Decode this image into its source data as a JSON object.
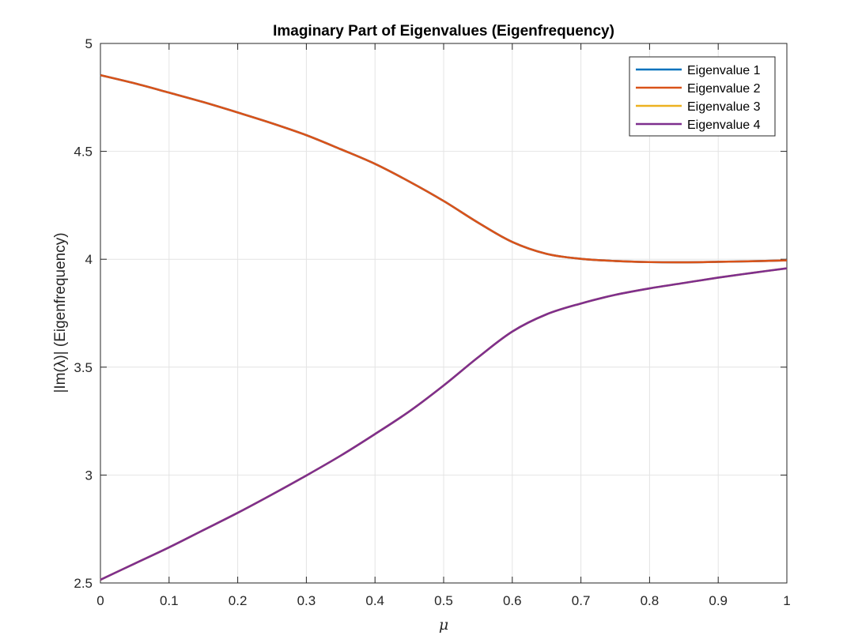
{
  "chart_data": {
    "type": "line",
    "title": "Imaginary Part of Eigenvalues (Eigenfrequency)",
    "xlabel": "μ",
    "ylabel": "|Im(λ)| (Eigenfrequency)",
    "xlim": [
      0,
      1
    ],
    "ylim": [
      2.5,
      5
    ],
    "xticks": [
      "0",
      "0.1",
      "0.2",
      "0.3",
      "0.4",
      "0.5",
      "0.6",
      "0.7",
      "0.8",
      "0.9",
      "1"
    ],
    "yticks": [
      "2.5",
      "3",
      "3.5",
      "4",
      "4.5",
      "5"
    ],
    "grid": true,
    "legend_position": "top-right",
    "x": [
      0,
      0.05,
      0.1,
      0.15,
      0.2,
      0.25,
      0.3,
      0.35,
      0.4,
      0.45,
      0.5,
      0.55,
      0.6,
      0.65,
      0.7,
      0.75,
      0.8,
      0.85,
      0.9,
      0.95,
      1.0
    ],
    "series": [
      {
        "name": "Eigenvalue 1",
        "color": "#0072BD",
        "values": [
          4.853,
          4.815,
          4.772,
          4.728,
          4.68,
          4.63,
          4.575,
          4.51,
          4.442,
          4.36,
          4.27,
          4.17,
          4.08,
          4.025,
          4.002,
          3.992,
          3.987,
          3.986,
          3.988,
          3.991,
          3.995
        ]
      },
      {
        "name": "Eigenvalue 2",
        "color": "#D95319",
        "values": [
          4.853,
          4.815,
          4.772,
          4.728,
          4.68,
          4.63,
          4.575,
          4.51,
          4.442,
          4.36,
          4.27,
          4.17,
          4.08,
          4.025,
          4.002,
          3.992,
          3.987,
          3.986,
          3.988,
          3.991,
          3.995
        ]
      },
      {
        "name": "Eigenvalue 3",
        "color": "#EDB120",
        "values": [
          2.515,
          2.59,
          2.665,
          2.745,
          2.825,
          2.91,
          2.998,
          3.09,
          3.19,
          3.295,
          3.415,
          3.545,
          3.665,
          3.745,
          3.795,
          3.835,
          3.865,
          3.89,
          3.915,
          3.937,
          3.958
        ]
      },
      {
        "name": "Eigenvalue 4",
        "color": "#7E2F8E",
        "values": [
          2.515,
          2.59,
          2.665,
          2.745,
          2.825,
          2.91,
          2.998,
          3.09,
          3.19,
          3.295,
          3.415,
          3.545,
          3.665,
          3.745,
          3.795,
          3.835,
          3.865,
          3.89,
          3.915,
          3.937,
          3.958
        ]
      }
    ]
  }
}
